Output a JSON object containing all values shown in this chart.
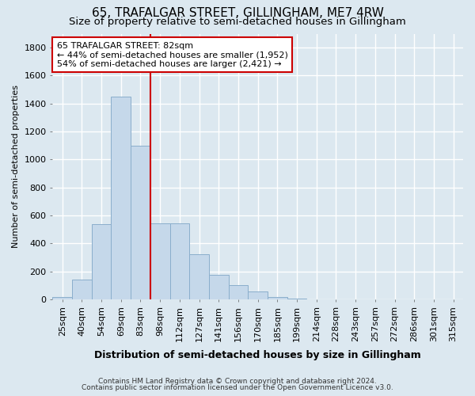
{
  "title1": "65, TRAFALGAR STREET, GILLINGHAM, ME7 4RW",
  "title2": "Size of property relative to semi-detached houses in Gillingham",
  "xlabel": "Distribution of semi-detached houses by size in Gillingham",
  "ylabel": "Number of semi-detached properties",
  "categories": [
    "25sqm",
    "40sqm",
    "54sqm",
    "69sqm",
    "83sqm",
    "98sqm",
    "112sqm",
    "127sqm",
    "141sqm",
    "156sqm",
    "170sqm",
    "185sqm",
    "199sqm",
    "214sqm",
    "228sqm",
    "243sqm",
    "257sqm",
    "272sqm",
    "286sqm",
    "301sqm",
    "315sqm"
  ],
  "values": [
    20,
    140,
    540,
    1450,
    1100,
    545,
    545,
    325,
    175,
    100,
    60,
    20,
    5,
    0,
    0,
    0,
    0,
    0,
    0,
    0,
    0
  ],
  "bar_color": "#c5d8ea",
  "bar_edge_color": "#8aaecc",
  "vline_color": "#cc0000",
  "annotation_text_line1": "65 TRAFALGAR STREET: 82sqm",
  "annotation_text_line2": "← 44% of semi-detached houses are smaller (1,952)",
  "annotation_text_line3": "54% of semi-detached houses are larger (2,421) →",
  "annotation_box_color": "white",
  "annotation_box_edge_color": "#cc0000",
  "ylim": [
    0,
    1900
  ],
  "yticks": [
    0,
    200,
    400,
    600,
    800,
    1000,
    1200,
    1400,
    1600,
    1800
  ],
  "footer1": "Contains HM Land Registry data © Crown copyright and database right 2024.",
  "footer2": "Contains public sector information licensed under the Open Government Licence v3.0.",
  "bg_color": "#dce8f0",
  "plot_bg_color": "#dce8f0",
  "grid_color": "white",
  "title1_fontsize": 11,
  "title2_fontsize": 9.5,
  "ylabel_fontsize": 8,
  "xlabel_fontsize": 9,
  "tick_fontsize": 8,
  "footer_fontsize": 6.5,
  "vline_x_index": 4
}
